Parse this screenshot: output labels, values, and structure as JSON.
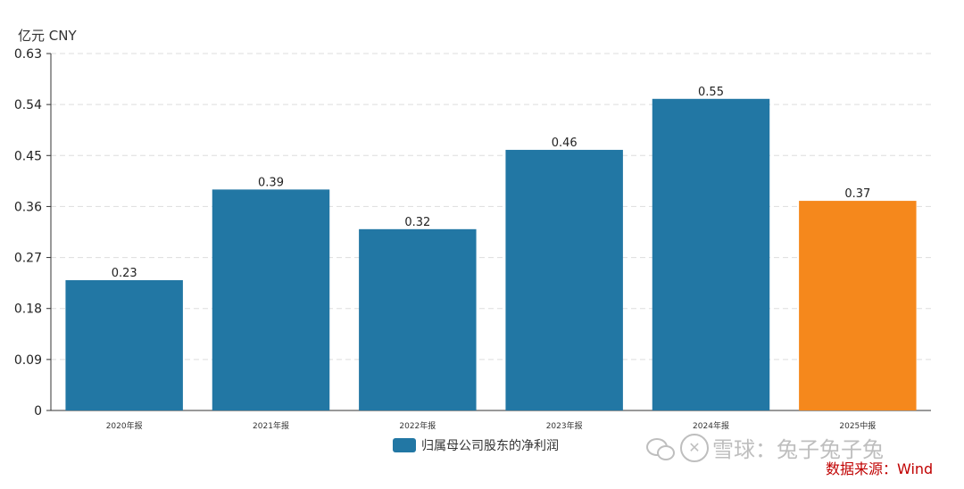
{
  "unit_label": "亿元  CNY",
  "legend": {
    "label": "归属母公司股东的净利润",
    "color": "#2277a4"
  },
  "watermark": {
    "text": "雪球：兔子兔子兔",
    "icons": [
      "wechat-icon",
      "xueqiu-icon"
    ]
  },
  "source": "数据来源：Wind",
  "chart_data": {
    "type": "bar",
    "categories": [
      "2020年报",
      "2021年报",
      "2022年报",
      "2023年报",
      "2024年报",
      "2025中报"
    ],
    "values": [
      0.23,
      0.39,
      0.32,
      0.46,
      0.55,
      0.37
    ],
    "value_labels": [
      "0.23",
      "0.39",
      "0.32",
      "0.46",
      "0.55",
      "0.37"
    ],
    "bar_colors": [
      "#2277a4",
      "#2277a4",
      "#2277a4",
      "#2277a4",
      "#2277a4",
      "#f5881c"
    ],
    "ylim": [
      0,
      0.63
    ],
    "yticks": [
      0,
      0.09,
      0.18,
      0.27,
      0.36,
      0.45,
      0.54,
      0.63
    ],
    "ytick_labels": [
      "0",
      "0.09",
      "0.18",
      "0.27",
      "0.36",
      "0.45",
      "0.54",
      "0.63"
    ],
    "grid": true,
    "legend_position": "bottom-center"
  }
}
